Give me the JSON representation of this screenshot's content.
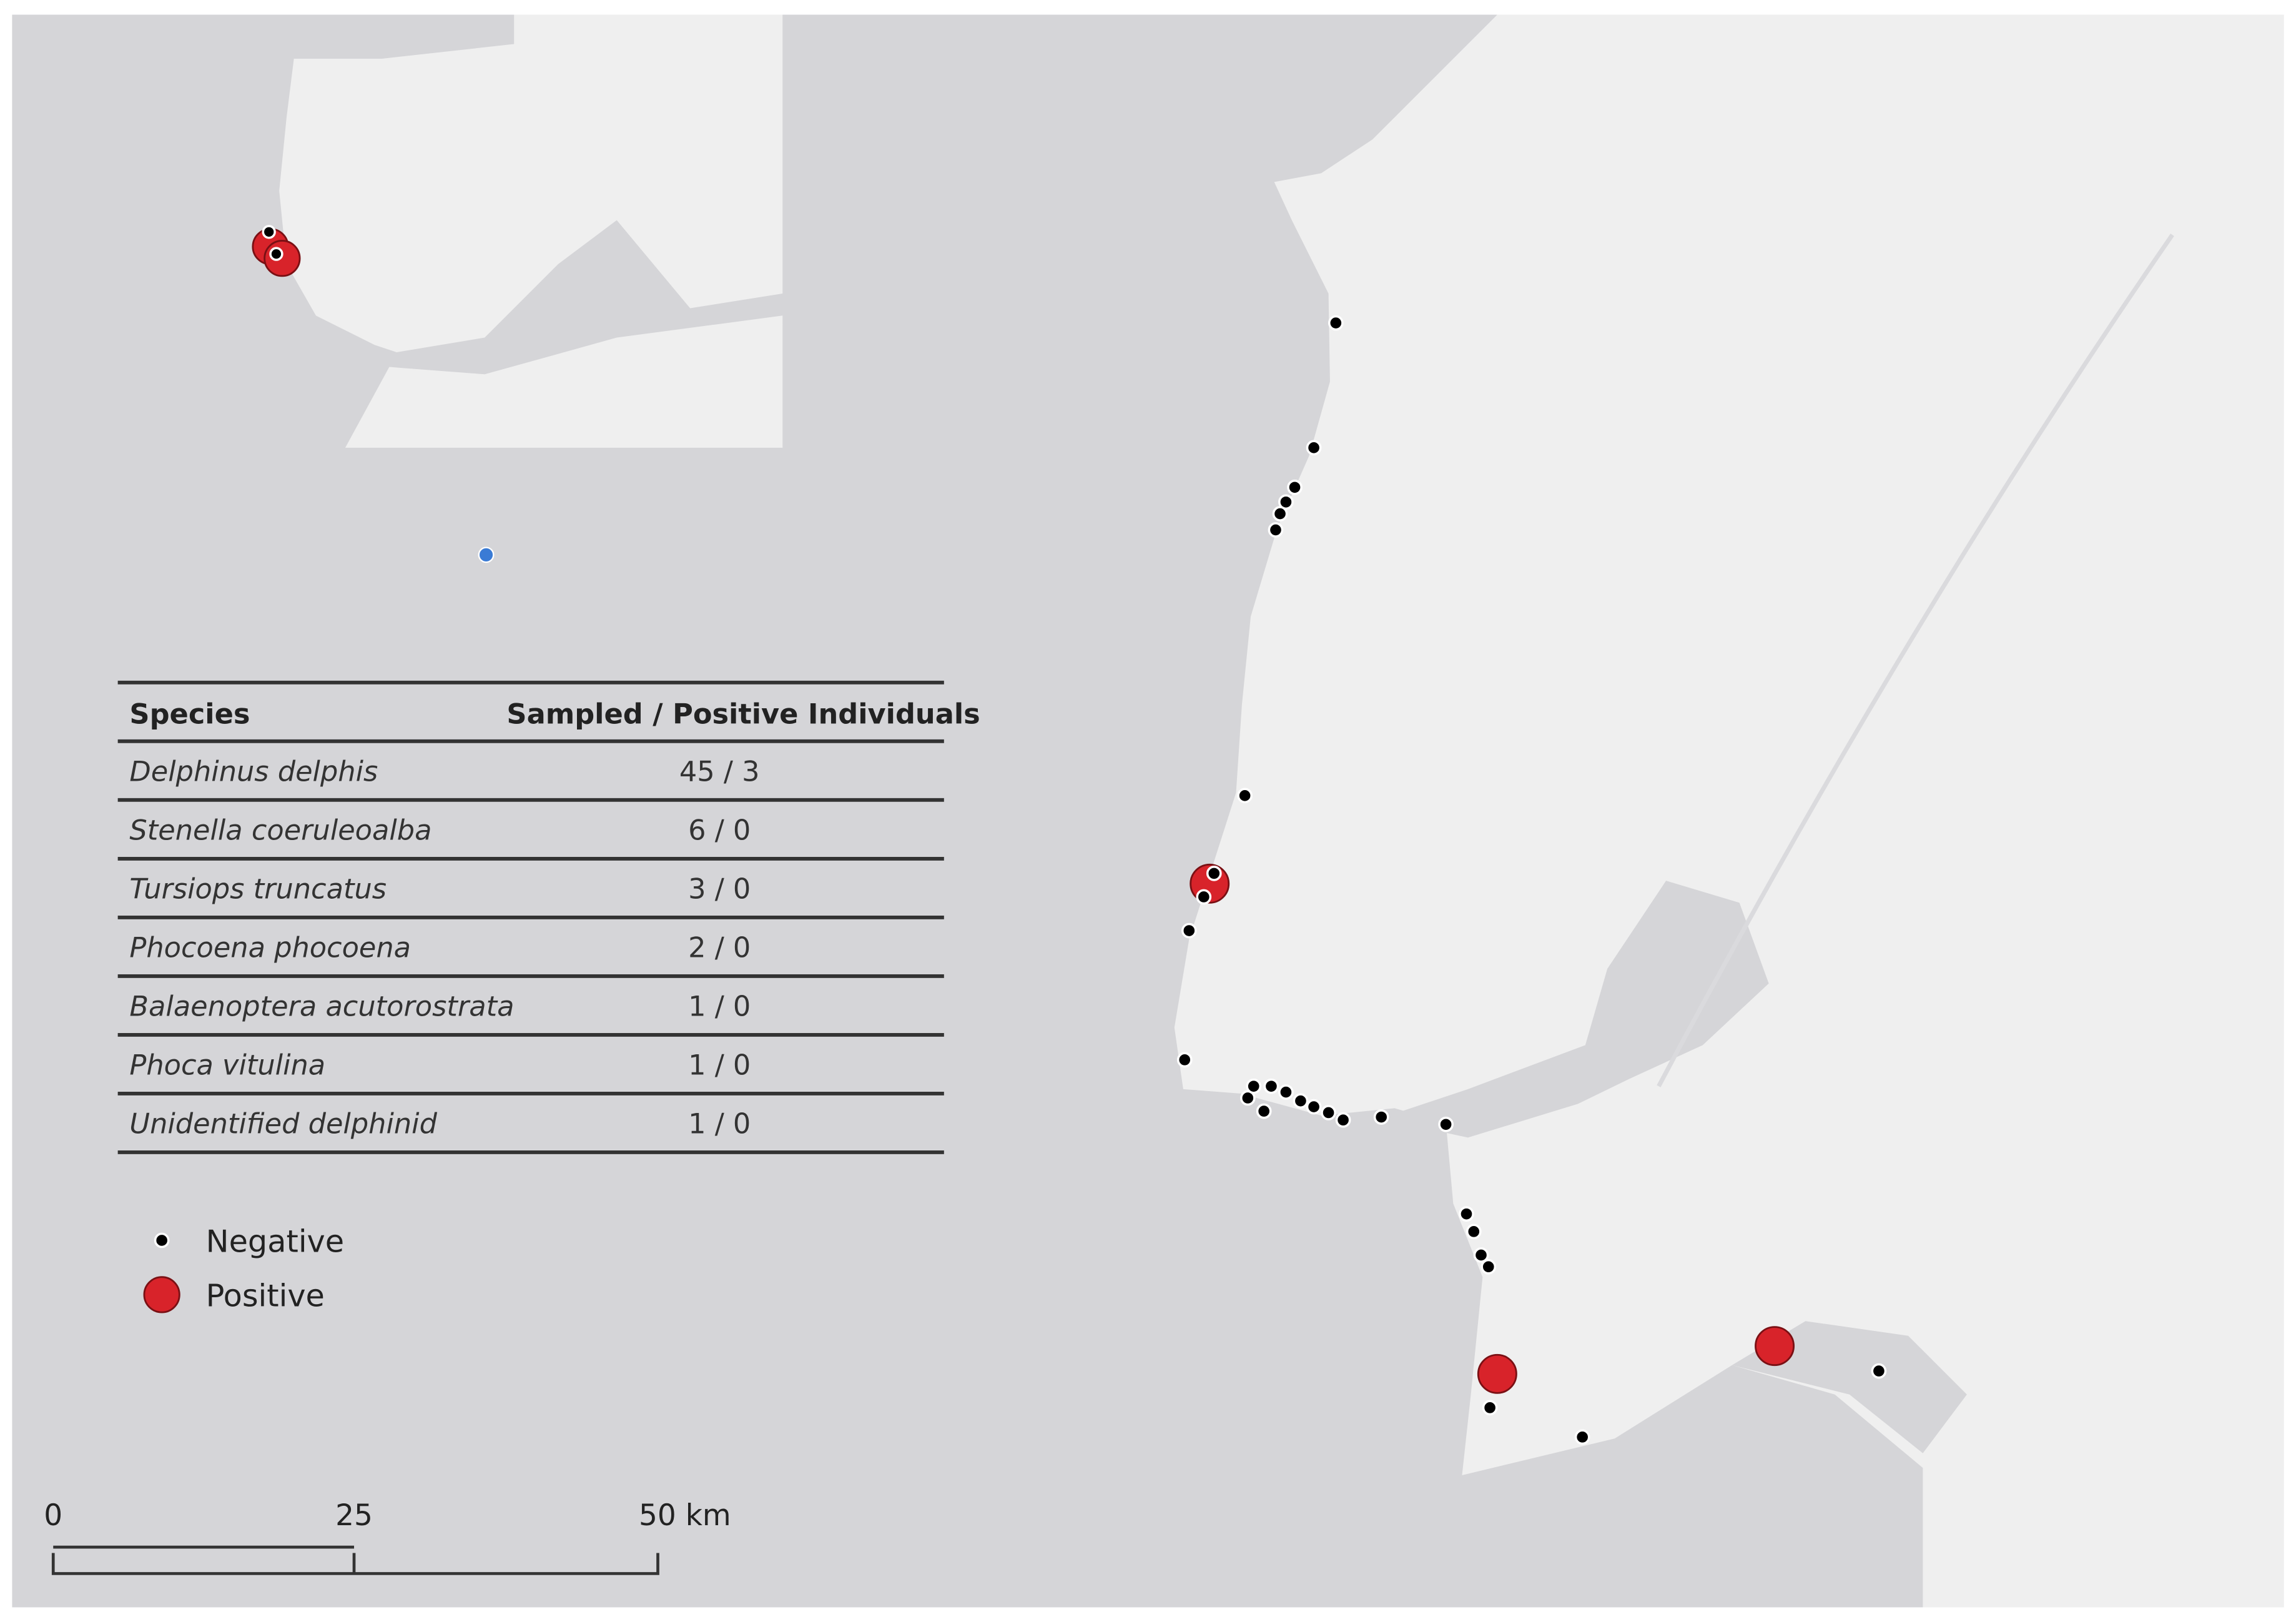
{
  "table": {
    "header": [
      "Species",
      "Sampled / Positive Individuals"
    ],
    "rows": [
      [
        "Delphinus delphis",
        "45 / 3"
      ],
      [
        "Stenella coeruleoalba",
        "6 / 0"
      ],
      [
        "Tursiops truncatus",
        "3 / 0"
      ],
      [
        "Phocoena phocoena",
        "2 / 0"
      ],
      [
        "Balaenoptera acutorostrata",
        "1 / 0"
      ],
      [
        "Phoca vitulina",
        "1 / 0"
      ],
      [
        "Unidentified delphinid",
        "1 / 0"
      ]
    ]
  },
  "legend": [
    "Negative",
    "Positive"
  ],
  "scale_bar": [
    "0",
    "25",
    "50 km"
  ]
}
